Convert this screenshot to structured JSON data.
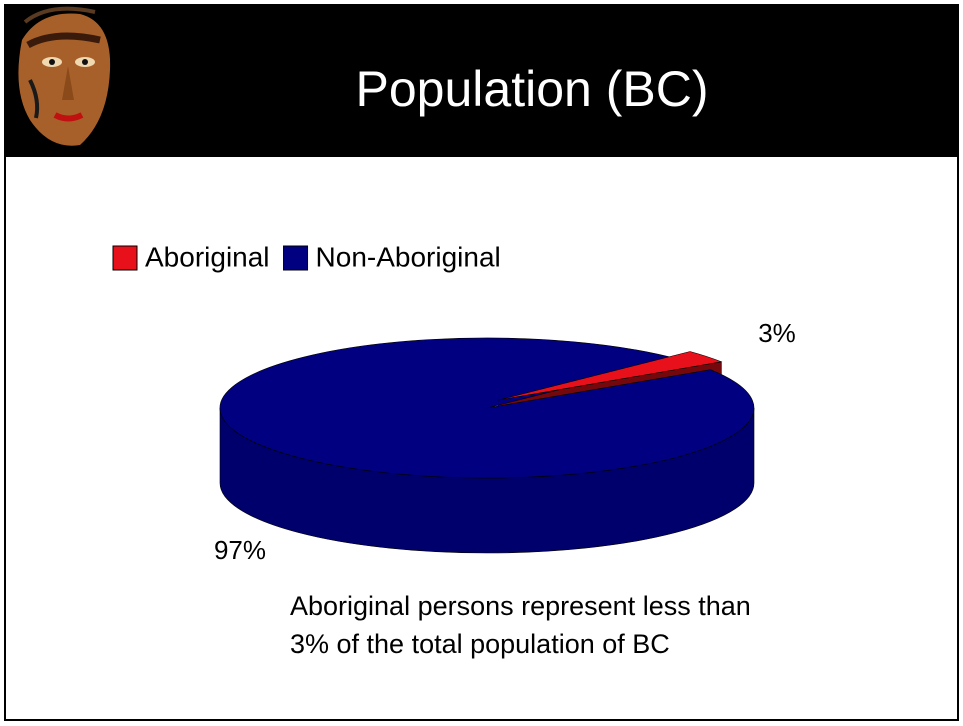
{
  "chart_data": {
    "type": "pie",
    "title": "Population (BC)",
    "categories": [
      "Aboriginal",
      "Non-Aboriginal"
    ],
    "values": [
      3,
      97
    ],
    "value_labels": [
      "3%",
      "97%"
    ],
    "colors": [
      "#e8101a",
      "#000080"
    ],
    "legend": "top-left",
    "annotation": [
      "Aboriginal persons represent less than",
      "3% of the total population of BC"
    ]
  }
}
